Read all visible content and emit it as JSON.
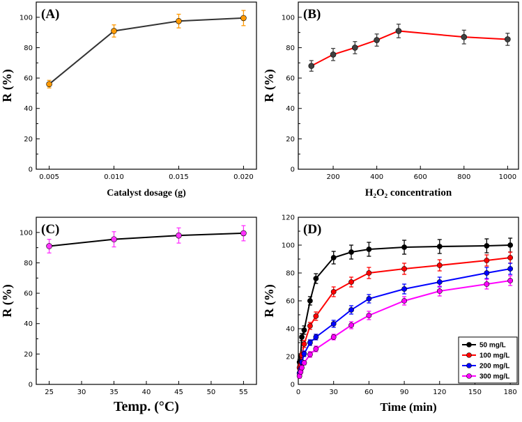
{
  "chart_data": [
    {
      "panel": "(A)",
      "type": "line",
      "title": "",
      "xlabel": "Catalyst dosage (g)",
      "ylabel": "R (%)",
      "x": [
        0.005,
        0.01,
        0.015,
        0.02
      ],
      "xticks": [
        "0.005",
        "0.010",
        "0.015",
        "0.020"
      ],
      "xlim": [
        0.004,
        0.021
      ],
      "ylim": [
        0,
        110
      ],
      "yticks": [
        0,
        20,
        40,
        60,
        80,
        100
      ],
      "series": [
        {
          "name": "R",
          "values": [
            56,
            91,
            97.5,
            99.5
          ],
          "errors": [
            2.5,
            4,
            4.5,
            5
          ],
          "color": "#333333",
          "marker": "#ff9900"
        }
      ]
    },
    {
      "panel": "(B)",
      "type": "line",
      "title": "",
      "xlabel": "H₂O₂ concentration",
      "ylabel": "R (%)",
      "x": [
        100,
        200,
        300,
        400,
        500,
        800,
        1000
      ],
      "xticks": [
        "200",
        "400",
        "600",
        "800",
        "1000"
      ],
      "xlim": [
        40,
        1050
      ],
      "ylim": [
        0,
        110
      ],
      "yticks": [
        0,
        20,
        40,
        60,
        80,
        100
      ],
      "series": [
        {
          "name": "R",
          "values": [
            68,
            75.5,
            80,
            85,
            91,
            87,
            85.5
          ],
          "errors": [
            3.5,
            4,
            4,
            4,
            4.5,
            4.5,
            4
          ],
          "color": "#ff0000",
          "marker": "#404040"
        }
      ]
    },
    {
      "panel": "(C)",
      "type": "line",
      "title": "",
      "xlabel": "Temp. (°C)",
      "ylabel": "R (%)",
      "x": [
        25,
        35,
        45,
        55
      ],
      "xticks": [
        "25",
        "30",
        "35",
        "40",
        "45",
        "50",
        "55"
      ],
      "xlim": [
        23,
        57
      ],
      "ylim": [
        0,
        110
      ],
      "yticks": [
        0,
        20,
        40,
        60,
        80,
        100
      ],
      "series": [
        {
          "name": "R",
          "values": [
            91,
            95.5,
            98,
            99.5
          ],
          "errors": [
            4.5,
            5,
            5,
            5
          ],
          "color": "#000000",
          "marker": "#ff33ff"
        }
      ]
    },
    {
      "panel": "(D)",
      "type": "line",
      "title": "",
      "xlabel": "Time (min)",
      "ylabel": "R (%)",
      "x": [
        1,
        2,
        3,
        5,
        10,
        15,
        30,
        45,
        60,
        90,
        120,
        160,
        180
      ],
      "xticks": [
        "0",
        "30",
        "60",
        "90",
        "120",
        "150",
        "180"
      ],
      "xlim": [
        0,
        187
      ],
      "ylim": [
        0,
        120
      ],
      "yticks": [
        0,
        20,
        40,
        60,
        80,
        100,
        120
      ],
      "series": [
        {
          "name": "50 mg/L",
          "values": [
            16,
            20,
            34,
            39,
            60,
            76,
            91,
            95,
            97,
            98.5,
            99,
            99.5,
            100
          ],
          "errors": [
            2,
            2,
            2.5,
            3,
            3,
            3.5,
            4.5,
            5,
            5,
            5,
            5,
            5,
            5
          ],
          "color": "#000000"
        },
        {
          "name": "100 mg/L",
          "values": [
            12,
            14,
            21,
            29,
            42,
            49,
            66.5,
            73.5,
            80,
            83,
            85.5,
            89,
            91
          ],
          "errors": [
            1.5,
            1.5,
            2,
            2.5,
            2.5,
            3,
            3.5,
            3.5,
            4,
            4,
            4,
            4,
            4
          ],
          "color": "#ff0000"
        },
        {
          "name": "200 mg/L",
          "values": [
            8,
            11,
            16,
            22,
            30,
            34,
            43.5,
            53.5,
            61.5,
            68.5,
            73.5,
            80,
            83
          ],
          "errors": [
            1.5,
            1.5,
            1.5,
            2,
            2,
            2,
            2.5,
            3,
            3,
            3.5,
            3.5,
            4,
            4
          ],
          "color": "#0000ff"
        },
        {
          "name": "300 mg/L",
          "values": [
            6,
            9,
            12,
            15.5,
            21.5,
            25.5,
            34,
            42.5,
            49.5,
            60,
            67,
            72,
            74.5
          ],
          "errors": [
            1.5,
            1.5,
            1.5,
            1.5,
            2,
            2,
            2,
            2.5,
            3,
            3,
            3.5,
            3.5,
            3.5
          ],
          "color": "#ff00ff"
        }
      ],
      "legend": "bottom-right"
    }
  ]
}
